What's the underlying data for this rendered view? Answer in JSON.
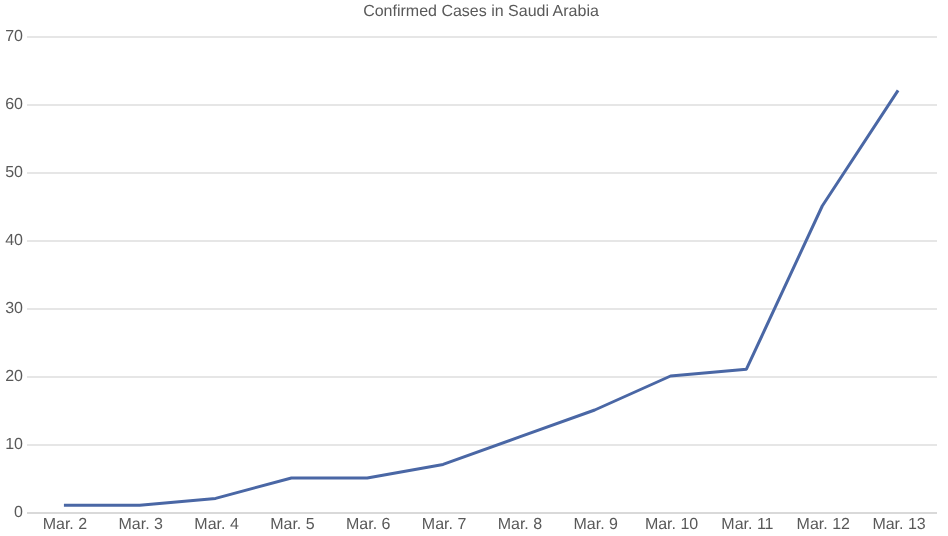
{
  "chart_data": {
    "type": "line",
    "title": "Confirmed Cases in Saudi Arabia",
    "categories": [
      "Mar. 2",
      "Mar. 3",
      "Mar. 4",
      "Mar. 5",
      "Mar. 6",
      "Mar. 7",
      "Mar. 8",
      "Mar. 9",
      "Mar. 10",
      "Mar. 11",
      "Mar. 12",
      "Mar. 13"
    ],
    "series": [
      {
        "color": "#4a67a5",
        "values": [
          1,
          1,
          2,
          5,
          5,
          7,
          11,
          15,
          20,
          21,
          45,
          62
        ]
      }
    ],
    "ylim": [
      0,
      70
    ],
    "yticks": [
      0,
      10,
      20,
      30,
      40,
      50,
      60,
      70
    ],
    "grid": "y",
    "marker": "none",
    "line_style": "solid"
  }
}
